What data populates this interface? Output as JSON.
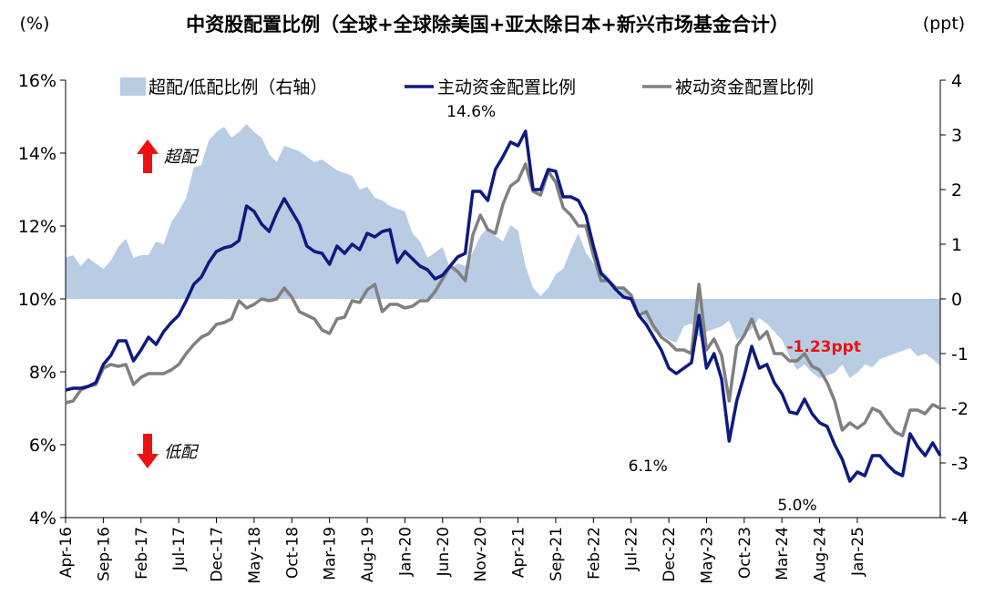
{
  "chart_data": {
    "type": "line",
    "title": "中资股配置比例（全球+全球除美国+亚太除日本+新兴市场基金合计）",
    "left_axis": {
      "label": "(%)",
      "min": 4,
      "max": 16,
      "ticks": [
        "4%",
        "6%",
        "8%",
        "10%",
        "12%",
        "14%",
        "16%"
      ]
    },
    "right_axis": {
      "label": "(ppt)",
      "min": -4,
      "max": 4,
      "ticks": [
        "-4",
        "-3",
        "-2",
        "-1",
        "0",
        "1",
        "2",
        "3",
        "4"
      ]
    },
    "x_tick_labels": [
      "Apr-16",
      "Sep-16",
      "Feb-17",
      "Jul-17",
      "Dec-17",
      "May-18",
      "Oct-18",
      "Mar-19",
      "Aug-19",
      "Jan-20",
      "Jun-20",
      "Nov-20",
      "Apr-21",
      "Sep-21",
      "Feb-22",
      "Jul-22",
      "Dec-22",
      "May-23",
      "Oct-23",
      "Mar-24",
      "Aug-24",
      "Jan-25"
    ],
    "legend": [
      "超配/低配比例（右轴）",
      "主动资金配置比例",
      "被动资金配置比例"
    ],
    "colors": {
      "area": "#b8cce4",
      "active": "#0d1a80",
      "passive": "#808080",
      "arrow": "#ee1111",
      "highlight": "#ee1111"
    },
    "indicators": {
      "over": "超配",
      "under": "低配"
    },
    "annotations": [
      {
        "text": "14.6%",
        "month": 55,
        "value": 14.6
      },
      {
        "text": "6.1%",
        "month": 77,
        "value": 6.1
      },
      {
        "text": "5.0%",
        "month": 98,
        "value": 5.0
      },
      {
        "text": "-1.23ppt",
        "month": 105,
        "value": -1.23
      }
    ],
    "series": [
      {
        "name": "主动资金配置比例",
        "axis": "left",
        "values": [
          7.5,
          7.55,
          7.55,
          7.6,
          7.7,
          8.2,
          8.45,
          8.85,
          8.85,
          8.3,
          8.6,
          8.95,
          8.75,
          9.1,
          9.35,
          9.55,
          9.95,
          10.4,
          10.6,
          11.0,
          11.3,
          11.4,
          11.45,
          11.6,
          12.55,
          12.4,
          12.05,
          11.85,
          12.35,
          12.75,
          12.4,
          12.05,
          11.45,
          11.3,
          11.25,
          10.95,
          11.45,
          11.25,
          11.5,
          11.35,
          11.8,
          11.7,
          11.85,
          11.9,
          11.0,
          11.3,
          11.1,
          10.9,
          10.8,
          10.55,
          10.65,
          10.9,
          11.15,
          11.25,
          12.95,
          12.95,
          12.7,
          13.55,
          13.9,
          14.3,
          14.2,
          14.6,
          13.0,
          13.0,
          13.55,
          13.5,
          12.8,
          12.8,
          12.7,
          12.3,
          11.45,
          10.7,
          10.5,
          10.25,
          10.05,
          10.0,
          9.55,
          9.3,
          8.95,
          8.6,
          8.1,
          7.95,
          8.1,
          8.25,
          9.55,
          8.1,
          8.5,
          7.8,
          6.1,
          7.2,
          7.9,
          8.7,
          8.1,
          8.2,
          7.7,
          7.4,
          6.9,
          6.85,
          7.25,
          6.85,
          6.6,
          6.5,
          6.0,
          5.6,
          5.0,
          5.25,
          5.15,
          5.7,
          5.7,
          5.45,
          5.25,
          5.15,
          6.3,
          5.95,
          5.7,
          6.05,
          5.7
        ]
      },
      {
        "name": "被动资金配置比例",
        "axis": "left",
        "values": [
          7.15,
          7.2,
          7.5,
          7.6,
          7.65,
          8.1,
          8.2,
          8.15,
          8.2,
          7.65,
          7.85,
          7.95,
          7.95,
          7.95,
          8.05,
          8.2,
          8.5,
          8.75,
          8.95,
          9.05,
          9.3,
          9.35,
          9.45,
          9.95,
          9.75,
          9.85,
          10.0,
          9.95,
          10.0,
          10.3,
          10.05,
          9.65,
          9.55,
          9.45,
          9.15,
          9.05,
          9.45,
          9.5,
          9.95,
          9.9,
          10.25,
          10.4,
          9.65,
          9.85,
          9.85,
          9.75,
          9.8,
          9.95,
          9.95,
          10.2,
          10.55,
          10.9,
          10.75,
          10.5,
          11.75,
          12.3,
          11.9,
          11.8,
          12.6,
          13.1,
          13.25,
          13.7,
          12.95,
          12.85,
          13.5,
          13.2,
          12.5,
          12.3,
          12.0,
          12.0,
          11.2,
          10.5,
          10.5,
          10.3,
          10.3,
          10.1,
          9.55,
          9.65,
          9.25,
          8.95,
          8.8,
          8.6,
          8.6,
          8.5,
          10.4,
          8.6,
          8.9,
          8.45,
          7.2,
          8.7,
          9.0,
          9.45,
          8.9,
          9.1,
          8.5,
          8.5,
          8.3,
          8.3,
          8.5,
          8.15,
          8.05,
          7.7,
          7.2,
          6.4,
          6.6,
          6.45,
          6.6,
          7.0,
          6.9,
          6.6,
          6.35,
          6.25,
          6.95,
          6.95,
          6.85,
          7.1,
          7.0
        ]
      },
      {
        "name": "超配/低配比例（右轴）",
        "axis": "right",
        "type": "area",
        "values": [
          0.75,
          0.8,
          0.6,
          0.75,
          0.65,
          0.55,
          0.7,
          0.95,
          1.1,
          0.75,
          0.8,
          0.8,
          1.05,
          1.0,
          1.4,
          1.6,
          1.85,
          2.4,
          2.45,
          2.9,
          3.05,
          3.15,
          2.95,
          3.05,
          3.2,
          3.05,
          2.95,
          2.65,
          2.5,
          2.8,
          2.75,
          2.7,
          2.6,
          2.5,
          2.55,
          2.45,
          2.35,
          2.3,
          2.25,
          2.0,
          2.05,
          1.85,
          1.8,
          1.7,
          1.65,
          1.6,
          1.2,
          1.05,
          0.75,
          0.85,
          0.95,
          0.55,
          0.65,
          0.6,
          0.85,
          1.15,
          1.3,
          1.15,
          1.05,
          1.35,
          1.25,
          0.6,
          0.2,
          0.05,
          0.2,
          0.45,
          0.55,
          0.9,
          1.2,
          0.85,
          0.65,
          0.55,
          0.4,
          0.1,
          0.2,
          0.1,
          -0.2,
          -0.4,
          -0.6,
          -0.65,
          -0.75,
          -0.8,
          -0.5,
          -0.45,
          -0.7,
          -0.6,
          -0.55,
          -0.5,
          -0.4,
          -0.75,
          -0.65,
          -0.55,
          -0.35,
          -0.45,
          -0.6,
          -0.75,
          -1.05,
          -1.3,
          -1.2,
          -1.35,
          -1.45,
          -1.4,
          -1.35,
          -1.2,
          -1.45,
          -1.35,
          -1.2,
          -1.25,
          -1.1,
          -1.05,
          -1.0,
          -0.95,
          -0.9,
          -1.05,
          -1.0,
          -1.1,
          -1.23
        ]
      }
    ]
  }
}
